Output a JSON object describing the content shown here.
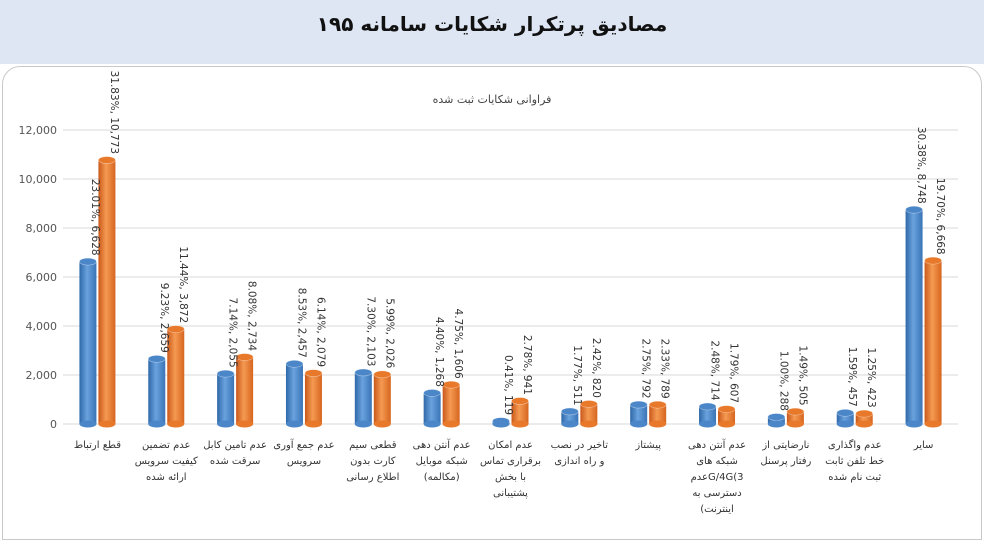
{
  "page": {
    "title": "مصادیق پرتکرار شکایات سامانه ۱۹۵"
  },
  "chart_data": {
    "type": "bar",
    "title": "فراوانی شکایات ثبت شده",
    "ylim": [
      0,
      12000
    ],
    "yticks": [
      "0",
      "2,000",
      "4,000",
      "6,000",
      "8,000",
      "10,000",
      "12,000"
    ],
    "grid": true,
    "categories": [
      [
        "قطع ارتباط"
      ],
      [
        "عدم تضمین",
        "کیفیت سرویس",
        "ارائه شده"
      ],
      [
        "عدم تامین کابل",
        "سرقت شده"
      ],
      [
        "عدم جمع آوری",
        "سرویس"
      ],
      [
        "قطعی سیم",
        "کارت بدون",
        "اطلاع رسانی"
      ],
      [
        "عدم آنتن دهی",
        "شبکه موبایل",
        "(مکالمه)"
      ],
      [
        "عدم امکان",
        "برقراری تماس",
        "با بخش",
        "پشتیبانی"
      ],
      [
        "تاخیر در نصب",
        "و راه اندازی"
      ],
      [
        "پیشتاز"
      ],
      [
        "عدم آنتن دهی",
        "شبکه های",
        "G/4G(3عدم",
        "دسترسی به",
        "اینترنت)"
      ],
      [
        "نارضایتی از",
        "رفتار پرسنل"
      ],
      [
        "عدم واگذاری",
        "خط تلفن ثابت",
        "ثبت نام شده"
      ],
      [
        "سایر"
      ]
    ],
    "series": [
      {
        "color": "#4a86c8",
        "values": [
          6628,
          2659,
          2055,
          2457,
          2103,
          1268,
          119,
          511,
          792,
          714,
          288,
          457,
          8748
        ],
        "labels": [
          "23.01%, 6,628",
          "9.23%, 2,659",
          "7.14%, 2,055",
          "8.53%, 2,457",
          "7.30%, 2,103",
          "4.40%, 1,268",
          "0.41%, 119",
          "1.77%, 511",
          "2.75%, 792",
          "2.48%, 714",
          "1.00%, 288",
          "1.59%, 457",
          "30.38%, 8,748"
        ]
      },
      {
        "color": "#e8782a",
        "values": [
          10773,
          3872,
          2734,
          2079,
          2026,
          1606,
          941,
          820,
          789,
          607,
          505,
          423,
          6668
        ],
        "labels": [
          "31.83%, 10,773",
          "11.44%, 3,872",
          "8.08%, 2,734",
          "6.14%, 2,079",
          "5.99%, 2,026",
          "4.75%, 1,606",
          "2.78%, 941",
          "2.42%, 820",
          "2.33%, 789",
          "1.79%, 607",
          "1.49%, 505",
          "1.25%, 423",
          "19.70%, 6,668"
        ]
      }
    ]
  }
}
